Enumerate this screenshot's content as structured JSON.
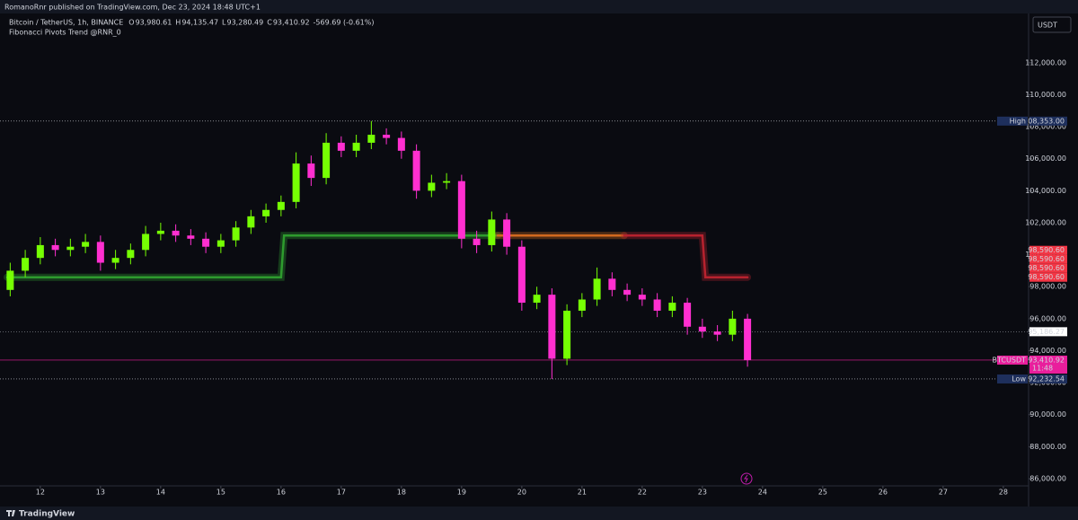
{
  "header": {
    "publisher": "RomanoRnr published on TradingView.com, Dec 23, 2024 18:48 UTC+1",
    "symbol": "Bitcoin / TetherUS, 1h, BINANCE",
    "ohlc": [
      {
        "key": "O",
        "value": "93,980.61"
      },
      {
        "key": "H",
        "value": "94,135.47"
      },
      {
        "key": "L",
        "value": "93,280.49"
      },
      {
        "key": "C",
        "value": "93,410.92"
      }
    ],
    "change": "-569.69 (-0.61%)",
    "indicator": "Fibonacci Pivots Trend @RNR_0",
    "currency": "USDT"
  },
  "footer": {
    "brand": "TradingView"
  },
  "chart_data": {
    "type": "candlestick",
    "up_color": "#76ff03",
    "down_color": "#ff2fd0",
    "x": [
      11.5,
      11.75,
      12,
      12.25,
      12.5,
      12.75,
      13,
      13.25,
      13.5,
      13.75,
      14,
      14.25,
      14.5,
      14.75,
      15,
      15.25,
      15.5,
      15.75,
      16,
      16.25,
      16.5,
      16.75,
      17,
      17.25,
      17.5,
      17.75,
      18,
      18.25,
      18.5,
      18.75,
      19,
      19.25,
      19.5,
      19.75,
      20,
      20.25,
      20.5,
      20.75,
      21,
      21.25,
      21.5,
      21.75,
      22,
      22.25,
      22.5,
      22.75,
      23,
      23.25,
      23.5,
      23.75
    ],
    "open": [
      97800,
      99000,
      99800,
      100600,
      100300,
      100500,
      100800,
      99500,
      99800,
      100300,
      101300,
      101500,
      101200,
      101000,
      100500,
      100900,
      101700,
      102400,
      102800,
      103300,
      105700,
      104800,
      107000,
      106500,
      107000,
      107500,
      107300,
      106500,
      104000,
      104500,
      104600,
      101000,
      100600,
      102200,
      100500,
      97000,
      97500,
      93500,
      96500,
      97200,
      98500,
      97800,
      97500,
      97200,
      96500,
      97000,
      95500,
      95200,
      95000,
      96000
    ],
    "high": [
      99500,
      100300,
      101100,
      101000,
      101000,
      101300,
      101200,
      100300,
      100700,
      101800,
      102000,
      101900,
      101600,
      101400,
      101300,
      102100,
      102800,
      103200,
      103700,
      106400,
      106200,
      107600,
      107400,
      107500,
      108353,
      107900,
      107700,
      106900,
      105000,
      105100,
      105000,
      101500,
      102700,
      102600,
      100900,
      98000,
      97900,
      96900,
      97600,
      99200,
      98900,
      98200,
      97900,
      97600,
      97400,
      97300,
      96000,
      95600,
      96500,
      96300
    ],
    "low": [
      97400,
      98600,
      99400,
      99900,
      99900,
      100100,
      99000,
      99100,
      99400,
      99900,
      100900,
      100800,
      100600,
      100100,
      100100,
      100500,
      101300,
      102000,
      102400,
      102900,
      104300,
      104400,
      106100,
      106100,
      106600,
      106900,
      106000,
      103500,
      103600,
      104100,
      100400,
      100100,
      100200,
      100000,
      96500,
      96600,
      92232.54,
      93100,
      96100,
      96800,
      97400,
      97100,
      96800,
      96100,
      96100,
      95000,
      94800,
      94600,
      94600,
      93000
    ],
    "close": [
      99000,
      99800,
      100600,
      100300,
      100500,
      100800,
      99500,
      99800,
      100300,
      101300,
      101500,
      101200,
      101000,
      100500,
      100900,
      101700,
      102400,
      102800,
      103300,
      105700,
      104800,
      107000,
      106500,
      107000,
      107500,
      107300,
      106500,
      104000,
      104500,
      104600,
      101000,
      100600,
      102200,
      100500,
      97000,
      97500,
      93500,
      96500,
      97200,
      98500,
      97800,
      97500,
      97200,
      96500,
      97000,
      95500,
      95200,
      95000,
      96000,
      93410.92
    ],
    "trend": [
      {
        "color": "#2e9b2e",
        "x": [
          11.45,
          16,
          16.05,
          19.6
        ],
        "values": [
          98590.6,
          98590.6,
          101200,
          101200
        ]
      },
      {
        "color": "#d2691e",
        "x": [
          19.6,
          21.7
        ],
        "values": [
          101200,
          101200
        ]
      },
      {
        "color": "#b7222e",
        "x": [
          21.7,
          23,
          23.05,
          23.75
        ],
        "values": [
          101200,
          101200,
          98590.6,
          98590.6
        ]
      }
    ],
    "trend_labels": [
      {
        "value": 98590.6,
        "label": "98,590.60"
      },
      {
        "value": 98590.6,
        "label": "98,590.60"
      },
      {
        "value": 98590.6,
        "label": "98,590.60"
      },
      {
        "value": 98590.6,
        "label": "98,590.60"
      }
    ],
    "levels": [
      {
        "name": "High",
        "value": 108353,
        "label": "108,353.00",
        "style": "high"
      },
      {
        "value": 95186.27,
        "label": "95,186.27",
        "style": "plain"
      },
      {
        "name": "BTCUSDT",
        "value": 93410.92,
        "label": "93,410.92",
        "countdown": "11:48",
        "style": "last"
      },
      {
        "name": "Low",
        "value": 92232.54,
        "label": "92,232.54",
        "style": "low"
      }
    ],
    "xlim": [
      11.45,
      28.42
    ],
    "xticks": [
      12,
      13,
      14,
      15,
      16,
      17,
      18,
      19,
      20,
      21,
      22,
      23,
      24,
      25,
      26,
      27,
      28
    ],
    "ylim": [
      85550,
      114800
    ],
    "yticks": [
      {
        "value": 86000,
        "label": "86,000.00"
      },
      {
        "value": 88000,
        "label": "88,000.00"
      },
      {
        "value": 90000,
        "label": "90,000.00"
      },
      {
        "value": 92000,
        "label": "92,000.00"
      },
      {
        "value": 94000,
        "label": "94,000.00"
      },
      {
        "value": 96000,
        "label": "96,000.00"
      },
      {
        "value": 98000,
        "label": "98,000.00"
      },
      {
        "value": 100000,
        "label": "100,000.00"
      },
      {
        "value": 102000,
        "label": "102,000.00"
      },
      {
        "value": 104000,
        "label": "104,000.00"
      },
      {
        "value": 106000,
        "label": "106,000.00"
      },
      {
        "value": 108000,
        "label": "108,000.00"
      },
      {
        "value": 110000,
        "label": "110,000.00"
      },
      {
        "value": 112000,
        "label": "112,000.00"
      }
    ]
  }
}
